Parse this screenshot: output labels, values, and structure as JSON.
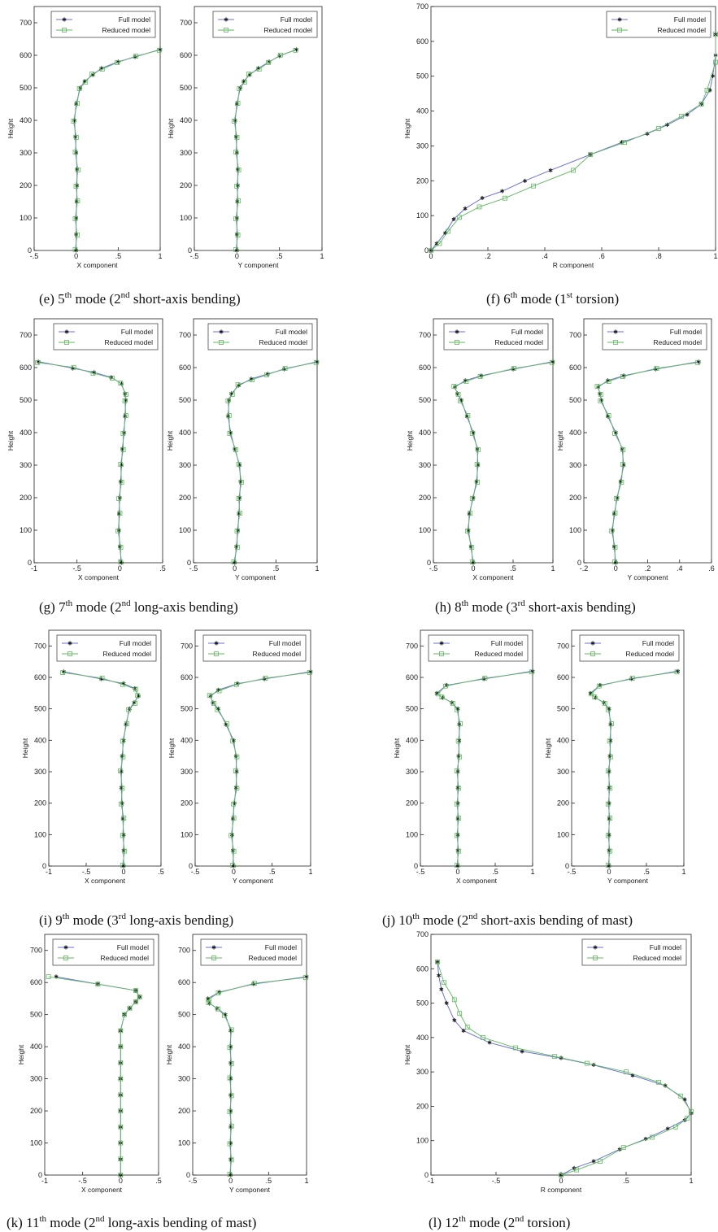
{
  "legend": {
    "full": "Full model",
    "reduced": "Reduced model"
  },
  "colors": {
    "full": "#6a72d8",
    "reduced": "#62b862",
    "axis": "#222222"
  },
  "captions": [
    {
      "label": "(e) 5",
      "sup1": "th",
      "mid": " mode (2",
      "sup2": "nd",
      "rest": " short-axis bending)"
    },
    {
      "label": "(f) 6",
      "sup1": "th",
      "mid": " mode (1",
      "sup2": "st",
      "rest": " torsion)"
    },
    {
      "label": "(g) 7",
      "sup1": "th",
      "mid": " mode (2",
      "sup2": "nd",
      "rest": " long-axis bending)"
    },
    {
      "label": "(h) 8",
      "sup1": "th",
      "mid": " mode (3",
      "sup2": "rd",
      "rest": " short-axis bending)"
    },
    {
      "label": "(i) 9",
      "sup1": "th",
      "mid": " mode (3",
      "sup2": "rd",
      "rest": " long-axis bending)"
    },
    {
      "label": "(j) 10",
      "sup1": "th",
      "mid": " mode (2",
      "sup2": "nd",
      "rest": " short-axis bending of mast)"
    },
    {
      "label": "(k) 11",
      "sup1": "th",
      "mid": " mode (2",
      "sup2": "nd",
      "rest": " long-axis bending of mast)"
    },
    {
      "label": "(l) 12",
      "sup1": "th",
      "mid": " mode (2",
      "sup2": "nd",
      "rest": " torsion)"
    }
  ],
  "chart_data": [
    {
      "id": "e-x",
      "type": "line",
      "xlabel": "X component",
      "ylabel": "Height",
      "xlim": [
        -0.5,
        1
      ],
      "ylim": [
        0,
        750
      ],
      "xticks": [
        -0.5,
        0,
        0.5,
        1
      ],
      "yticks": [
        0,
        100,
        200,
        300,
        400,
        500,
        600,
        700
      ],
      "series": [
        {
          "name": "Full model",
          "x": [
            0,
            0,
            0,
            0.005,
            0.01,
            0.01,
            0,
            -0.01,
            -0.02,
            0,
            0.05,
            0.1,
            0.2,
            0.3,
            0.5,
            0.7,
            1.0
          ],
          "y": [
            0,
            50,
            100,
            150,
            200,
            250,
            300,
            350,
            400,
            450,
            500,
            520,
            540,
            560,
            580,
            595,
            618
          ]
        }
      ]
    },
    {
      "id": "e-y",
      "type": "line",
      "xlabel": "Y component",
      "ylabel": "Height",
      "xlim": [
        -0.5,
        1
      ],
      "ylim": [
        0,
        750
      ],
      "xticks": [
        -0.5,
        0,
        0.5,
        1
      ],
      "yticks": [
        0,
        100,
        200,
        300,
        400,
        500,
        600,
        700
      ],
      "series": [
        {
          "name": "Full model",
          "x": [
            0,
            0,
            0,
            0.005,
            0.01,
            0.01,
            0,
            -0.01,
            -0.02,
            0,
            0.04,
            0.08,
            0.15,
            0.25,
            0.38,
            0.5,
            0.7
          ],
          "y": [
            0,
            50,
            100,
            150,
            200,
            250,
            300,
            350,
            400,
            450,
            500,
            520,
            540,
            560,
            580,
            598,
            618
          ]
        }
      ]
    },
    {
      "id": "f-r",
      "type": "line",
      "xlabel": "R component",
      "ylabel": "Height",
      "xlim": [
        0,
        1
      ],
      "ylim": [
        0,
        700
      ],
      "xticks": [
        0,
        0.2,
        0.4,
        0.6,
        0.8,
        1
      ],
      "yticks": [
        0,
        100,
        200,
        300,
        400,
        500,
        600,
        700
      ],
      "series": [
        {
          "name": "Full model",
          "x": [
            0,
            0.02,
            0.05,
            0.08,
            0.12,
            0.18,
            0.25,
            0.33,
            0.42,
            0.56,
            0.67,
            0.76,
            0.83,
            0.9,
            0.95,
            0.98,
            0.99,
            1.0,
            1.0
          ],
          "y": [
            0,
            20,
            50,
            90,
            120,
            150,
            170,
            200,
            230,
            275,
            310,
            335,
            360,
            390,
            420,
            460,
            500,
            560,
            620
          ]
        },
        {
          "name": "Reduced model",
          "x": [
            0,
            0.03,
            0.06,
            0.1,
            0.17,
            0.26,
            0.36,
            0.5,
            0.56,
            0.68,
            0.8,
            0.88,
            0.95,
            0.97,
            1.0,
            1.0
          ],
          "y": [
            0,
            20,
            55,
            95,
            125,
            150,
            185,
            230,
            275,
            310,
            350,
            385,
            420,
            460,
            540,
            620
          ]
        }
      ]
    },
    {
      "id": "g-x",
      "type": "line",
      "xlabel": "X component",
      "ylabel": "Height",
      "xlim": [
        -1,
        0.5
      ],
      "ylim": [
        0,
        750
      ],
      "xticks": [
        -1,
        -0.5,
        0,
        0.5
      ],
      "yticks": [
        0,
        100,
        200,
        300,
        400,
        500,
        600,
        700
      ],
      "series": [
        {
          "name": "Full model",
          "x": [
            0.02,
            0,
            -0.01,
            -0.01,
            0,
            0.01,
            0.02,
            0.03,
            0.05,
            0.06,
            0.07,
            0.06,
            0.02,
            -0.1,
            -0.3,
            -0.55,
            -0.95
          ],
          "y": [
            0,
            50,
            100,
            150,
            200,
            250,
            300,
            350,
            400,
            450,
            500,
            520,
            550,
            570,
            585,
            598,
            618
          ]
        }
      ]
    },
    {
      "id": "g-y",
      "type": "line",
      "xlabel": "Y component",
      "ylabel": "Height",
      "xlim": [
        -0.5,
        1
      ],
      "ylim": [
        0,
        750
      ],
      "xticks": [
        -0.5,
        0,
        0.5,
        1
      ],
      "yticks": [
        0,
        100,
        200,
        300,
        400,
        500,
        600,
        700
      ],
      "series": [
        {
          "name": "Full model",
          "x": [
            0,
            0.02,
            0.04,
            0.05,
            0.06,
            0.07,
            0.06,
            0,
            -0.05,
            -0.08,
            -0.07,
            -0.04,
            0.05,
            0.2,
            0.4,
            0.6,
            1.0
          ],
          "y": [
            0,
            50,
            100,
            150,
            200,
            250,
            300,
            350,
            400,
            450,
            500,
            520,
            545,
            565,
            580,
            595,
            618
          ]
        }
      ]
    },
    {
      "id": "h-x",
      "type": "line",
      "xlabel": "X component",
      "ylabel": "Height",
      "xlim": [
        -0.5,
        1
      ],
      "ylim": [
        0,
        750
      ],
      "xticks": [
        -0.5,
        0,
        0.5,
        1
      ],
      "yticks": [
        0,
        100,
        200,
        300,
        400,
        500,
        600,
        700
      ],
      "series": [
        {
          "name": "Full model",
          "x": [
            0,
            -0.03,
            -0.06,
            -0.05,
            0,
            0.04,
            0.06,
            0.05,
            0,
            -0.08,
            -0.15,
            -0.2,
            -0.23,
            -0.1,
            0.1,
            0.5,
            1.0
          ],
          "y": [
            0,
            50,
            100,
            150,
            200,
            250,
            300,
            350,
            400,
            450,
            500,
            520,
            540,
            560,
            575,
            595,
            618
          ]
        }
      ]
    },
    {
      "id": "h-y",
      "type": "line",
      "xlabel": "Y component",
      "ylabel": "Height",
      "xlim": [
        -0.2,
        0.6
      ],
      "ylim": [
        0,
        750
      ],
      "xticks": [
        -0.2,
        0,
        0.2,
        0.4,
        0.6
      ],
      "yticks": [
        0,
        100,
        200,
        300,
        400,
        500,
        600,
        700
      ],
      "series": [
        {
          "name": "Full model",
          "x": [
            0,
            -0.01,
            -0.02,
            -0.01,
            0.01,
            0.03,
            0.05,
            0.04,
            0,
            -0.05,
            -0.09,
            -0.1,
            -0.11,
            -0.05,
            0.05,
            0.25,
            0.52
          ],
          "y": [
            0,
            50,
            100,
            150,
            200,
            250,
            300,
            350,
            400,
            450,
            500,
            520,
            540,
            560,
            575,
            595,
            618
          ]
        }
      ]
    },
    {
      "id": "i-x",
      "type": "line",
      "xlabel": "X component",
      "ylabel": "Height",
      "xlim": [
        -1,
        0.5
      ],
      "ylim": [
        0,
        750
      ],
      "xticks": [
        -1,
        -0.5,
        0,
        0.5
      ],
      "yticks": [
        0,
        100,
        200,
        300,
        400,
        500,
        600,
        700
      ],
      "series": [
        {
          "name": "Full model",
          "x": [
            0,
            0,
            0,
            -0.01,
            -0.02,
            -0.03,
            -0.03,
            -0.02,
            0,
            0.03,
            0.08,
            0.14,
            0.2,
            0.15,
            0,
            -0.3,
            -0.8
          ],
          "y": [
            0,
            50,
            100,
            150,
            200,
            250,
            300,
            350,
            400,
            450,
            500,
            520,
            540,
            565,
            580,
            595,
            618
          ]
        }
      ]
    },
    {
      "id": "i-y",
      "type": "line",
      "xlabel": "Y component",
      "ylabel": "Height",
      "xlim": [
        -0.5,
        1
      ],
      "ylim": [
        0,
        750
      ],
      "xticks": [
        -0.5,
        0,
        0.5,
        1
      ],
      "yticks": [
        0,
        100,
        200,
        300,
        400,
        500,
        600,
        700
      ],
      "series": [
        {
          "name": "Full model",
          "x": [
            0,
            -0.01,
            -0.02,
            -0.01,
            0.01,
            0.03,
            0.04,
            0.03,
            0,
            -0.1,
            -0.2,
            -0.27,
            -0.3,
            -0.2,
            0.05,
            0.4,
            1.0
          ],
          "y": [
            0,
            50,
            100,
            150,
            200,
            250,
            300,
            350,
            400,
            450,
            500,
            520,
            540,
            560,
            580,
            595,
            618
          ]
        }
      ]
    },
    {
      "id": "j-x",
      "type": "line",
      "xlabel": "X component",
      "ylabel": "Height",
      "xlim": [
        -0.5,
        1
      ],
      "ylim": [
        0,
        750
      ],
      "xticks": [
        -0.5,
        0,
        0.5,
        1
      ],
      "yticks": [
        0,
        100,
        200,
        300,
        400,
        500,
        600,
        700
      ],
      "series": [
        {
          "name": "Full model",
          "x": [
            0,
            0,
            0,
            0,
            0,
            0,
            0,
            0.01,
            0.02,
            0.02,
            0,
            -0.08,
            -0.2,
            -0.28,
            -0.15,
            0.35,
            1.0
          ],
          "y": [
            0,
            50,
            100,
            150,
            200,
            250,
            300,
            350,
            400,
            450,
            500,
            520,
            535,
            550,
            575,
            595,
            620
          ]
        }
      ]
    },
    {
      "id": "j-y",
      "type": "line",
      "xlabel": "Y component",
      "ylabel": "Height",
      "xlim": [
        -0.5,
        1
      ],
      "ylim": [
        0,
        750
      ],
      "xticks": [
        -0.5,
        0,
        0.5,
        1
      ],
      "yticks": [
        0,
        100,
        200,
        300,
        400,
        500,
        600,
        700
      ],
      "series": [
        {
          "name": "Full model",
          "x": [
            0,
            0,
            0,
            0,
            0,
            0,
            0,
            0.01,
            0.02,
            0.02,
            0,
            -0.07,
            -0.18,
            -0.25,
            -0.12,
            0.3,
            0.92
          ],
          "y": [
            0,
            50,
            100,
            150,
            200,
            250,
            300,
            350,
            400,
            450,
            500,
            520,
            535,
            550,
            575,
            595,
            620
          ]
        }
      ]
    },
    {
      "id": "k-x",
      "type": "line",
      "xlabel": "X component",
      "ylabel": "Height",
      "xlim": [
        -1,
        0.5
      ],
      "ylim": [
        0,
        750
      ],
      "xticks": [
        -1,
        -0.5,
        0,
        0.5
      ],
      "yticks": [
        0,
        100,
        200,
        300,
        400,
        500,
        600,
        700
      ],
      "series": [
        {
          "name": "Full model",
          "x": [
            0,
            0,
            0,
            0,
            0,
            0,
            0,
            0,
            0,
            0,
            0.05,
            0.12,
            0.2,
            0.25,
            0.2,
            -0.3,
            -0.85
          ],
          "y": [
            0,
            50,
            100,
            150,
            200,
            250,
            300,
            350,
            400,
            450,
            500,
            520,
            540,
            555,
            575,
            595,
            618
          ]
        },
        {
          "name": "Reduced model",
          "x": [
            0,
            0,
            0,
            0,
            0,
            0,
            0,
            0,
            0,
            0,
            0.05,
            0.12,
            0.2,
            0.25,
            0.2,
            -0.3,
            -0.95
          ],
          "y": [
            0,
            50,
            100,
            150,
            200,
            250,
            300,
            350,
            400,
            450,
            500,
            520,
            540,
            555,
            575,
            595,
            618
          ]
        }
      ]
    },
    {
      "id": "k-y",
      "type": "line",
      "xlabel": "Y component",
      "ylabel": "Height",
      "xlim": [
        -0.5,
        1
      ],
      "ylim": [
        0,
        750
      ],
      "xticks": [
        -0.5,
        0,
        0.5,
        1
      ],
      "yticks": [
        0,
        100,
        200,
        300,
        400,
        500,
        600,
        700
      ],
      "series": [
        {
          "name": "Full model",
          "x": [
            0,
            0,
            0,
            0,
            0,
            0,
            0,
            0,
            0,
            0,
            -0.07,
            -0.18,
            -0.28,
            -0.3,
            -0.15,
            0.3,
            1.0
          ],
          "y": [
            0,
            50,
            100,
            150,
            200,
            250,
            300,
            350,
            400,
            450,
            500,
            520,
            535,
            550,
            570,
            595,
            618
          ]
        }
      ]
    },
    {
      "id": "l-r",
      "type": "line",
      "xlabel": "R component",
      "ylabel": "Height",
      "xlim": [
        -1,
        1
      ],
      "ylim": [
        0,
        700
      ],
      "xticks": [
        -1,
        -0.5,
        0,
        0.5,
        1
      ],
      "yticks": [
        0,
        100,
        200,
        300,
        400,
        500,
        600,
        700
      ],
      "series": [
        {
          "name": "Full model",
          "x": [
            0,
            0.1,
            0.25,
            0.45,
            0.65,
            0.82,
            0.95,
            1.0,
            0.95,
            0.8,
            0.55,
            0.25,
            0,
            -0.3,
            -0.55,
            -0.75,
            -0.82,
            -0.88,
            -0.92,
            -0.94,
            -0.95
          ],
          "y": [
            0,
            20,
            40,
            75,
            105,
            135,
            160,
            180,
            220,
            260,
            290,
            320,
            340,
            360,
            385,
            420,
            450,
            500,
            540,
            580,
            620
          ]
        },
        {
          "name": "Reduced model",
          "x": [
            0,
            0.12,
            0.3,
            0.48,
            0.7,
            0.88,
            0.97,
            1.0,
            0.92,
            0.75,
            0.5,
            0.2,
            -0.05,
            -0.35,
            -0.6,
            -0.72,
            -0.78,
            -0.82,
            -0.9,
            -0.95
          ],
          "y": [
            0,
            15,
            40,
            80,
            110,
            140,
            165,
            185,
            230,
            270,
            300,
            325,
            345,
            370,
            400,
            430,
            470,
            510,
            560,
            620
          ]
        }
      ]
    }
  ]
}
